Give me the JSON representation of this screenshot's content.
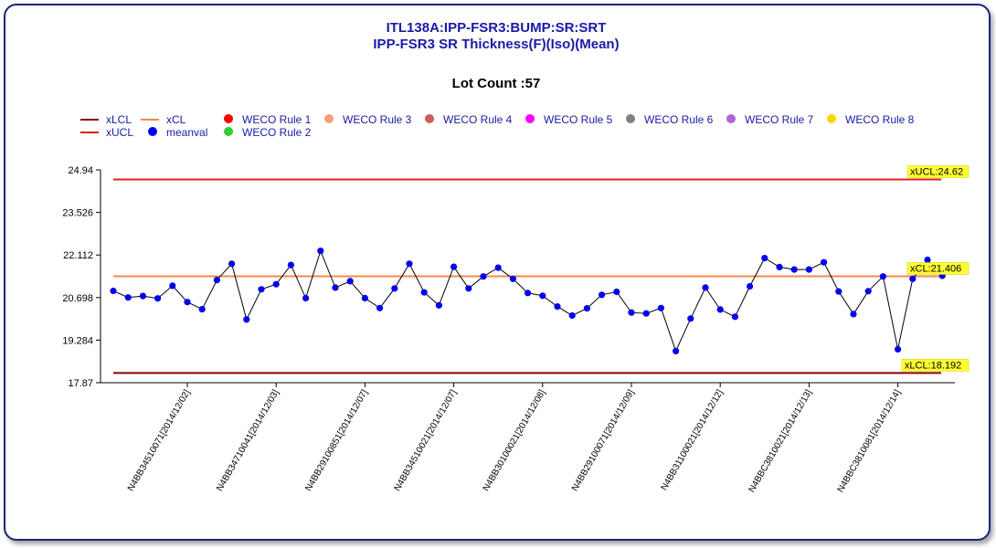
{
  "title_line1": "ITL138A:IPP-FSR3:BUMP:SR:SRT",
  "title_line2": "IPP-FSR3 SR Thickness(F)(Iso)(Mean)",
  "lot_count": "Lot Count :57",
  "legend": [
    {
      "id": "xlcl",
      "label": "xLCL",
      "kind": "line",
      "color": "#8b0000"
    },
    {
      "id": "xucl",
      "label": "xUCL",
      "kind": "line",
      "color": "#e02020"
    },
    {
      "id": "xcl",
      "label": "xCL",
      "kind": "line",
      "color": "#f08a4b"
    },
    {
      "id": "meanval",
      "label": "meanval",
      "kind": "dot",
      "color": "#0000ee"
    },
    {
      "id": "weco1",
      "label": "WECO Rule 1",
      "kind": "dot",
      "color": "#ff0000"
    },
    {
      "id": "weco2",
      "label": "WECO Rule 2",
      "kind": "dot",
      "color": "#33cc33"
    },
    {
      "id": "weco3",
      "label": "WECO Rule 3",
      "kind": "dot",
      "color": "#f4a07a"
    },
    {
      "id": "weco4",
      "label": "WECO Rule 4",
      "kind": "dot",
      "color": "#cd5c5c"
    },
    {
      "id": "weco5",
      "label": "WECO Rule 5",
      "kind": "dot",
      "color": "#ff00ff"
    },
    {
      "id": "weco6",
      "label": "WECO Rule 6",
      "kind": "dot",
      "color": "#808080"
    },
    {
      "id": "weco7",
      "label": "WECO Rule 7",
      "kind": "dot",
      "color": "#b266d6"
    },
    {
      "id": "weco8",
      "label": "WECO Rule 8",
      "kind": "dot",
      "color": "#ffd700"
    }
  ],
  "chart_data": {
    "type": "line",
    "series_name": "meanval",
    "ylim": [
      17.87,
      24.94
    ],
    "yticks": [
      17.87,
      19.284,
      20.698,
      22.112,
      23.526,
      24.94
    ],
    "limits": {
      "xUCL": {
        "value": 24.62,
        "label": "xUCL:24.62",
        "color": "#e02020"
      },
      "xCL": {
        "value": 21.406,
        "label": "xCL:21.406",
        "color": "#f08a4b"
      },
      "xLCL": {
        "value": 18.192,
        "label": "xLCL:18.192",
        "color": "#8b0000"
      }
    },
    "x_tick_labels": [
      {
        "index": 5,
        "label": "N4BB34510071[2014/12/02]"
      },
      {
        "index": 11,
        "label": "N4BB34710041[2014/12/03]"
      },
      {
        "index": 17,
        "label": "N4BB29100851[2014/12/07]"
      },
      {
        "index": 23,
        "label": "N4BB34510021[2014/12/07]"
      },
      {
        "index": 29,
        "label": "N4BB30100021[2014/12/08]"
      },
      {
        "index": 35,
        "label": "N4BB29100071[2014/12/09]"
      },
      {
        "index": 41,
        "label": "N4BB31100021[2014/12/12]"
      },
      {
        "index": 47,
        "label": "N4BBC3810021[2014/12/13]"
      },
      {
        "index": 53,
        "label": "N4BBC3810081[2014/12/14]"
      }
    ],
    "values": [
      20.92,
      20.7,
      20.75,
      20.67,
      21.09,
      20.55,
      20.31,
      21.28,
      21.82,
      19.97,
      20.97,
      21.14,
      21.78,
      20.68,
      22.25,
      21.03,
      21.24,
      20.68,
      20.35,
      21.0,
      21.82,
      20.87,
      20.44,
      21.72,
      21.0,
      21.4,
      21.69,
      21.32,
      20.85,
      20.76,
      20.4,
      20.1,
      20.34,
      20.79,
      20.89,
      20.2,
      20.17,
      20.35,
      18.92,
      20.0,
      21.03,
      20.3,
      20.06,
      21.07,
      22.01,
      21.71,
      21.63,
      21.63,
      21.87,
      20.9,
      20.15,
      20.91,
      21.4,
      18.98,
      21.32,
      21.95,
      21.42
    ]
  }
}
